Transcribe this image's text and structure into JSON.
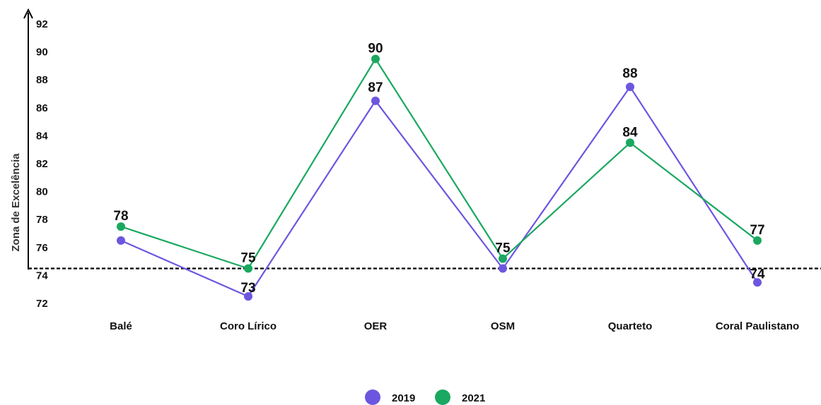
{
  "chart_data": {
    "type": "line",
    "ylabel": "Zona de Excelência",
    "xlabel": "",
    "ylim": [
      72,
      92
    ],
    "yticks": [
      72,
      74,
      76,
      78,
      80,
      82,
      84,
      86,
      88,
      90,
      92
    ],
    "categories": [
      "Balé",
      "Coro Lírico",
      "OER",
      "OSM",
      "Quarteto",
      "Coral Paulistano"
    ],
    "series": [
      {
        "name": "2019",
        "color": "#6c56e0",
        "values": [
          76.5,
          72.5,
          86.5,
          74.5,
          87.5,
          73.5
        ],
        "labels": [
          "",
          "73",
          "87",
          "",
          "88",
          "74"
        ]
      },
      {
        "name": "2021",
        "color": "#1aa860",
        "values": [
          77.5,
          74.5,
          89.5,
          75.2,
          83.5,
          76.5
        ],
        "labels": [
          "78",
          "75",
          "90",
          "75",
          "84",
          "77"
        ]
      }
    ],
    "reference_line": {
      "value": 74.5,
      "style": "dashed"
    },
    "legend_position": "bottom-center",
    "grid": false
  }
}
